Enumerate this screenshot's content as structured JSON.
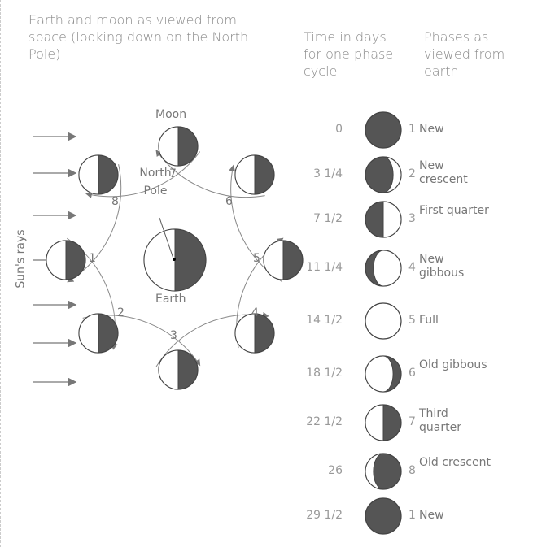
{
  "header": {
    "left": "Earth and moon as viewed from space (looking down on the North Pole)",
    "time": "Time in days for one phase cycle",
    "phases": "Phases as viewed from earth"
  },
  "labels": {
    "moon": "Moon",
    "north_pole": "North Pole",
    "earth": "Earth",
    "sun_rays": "Sun's rays"
  },
  "orbit_numbers": [
    "1",
    "2",
    "3",
    "4",
    "5",
    "6",
    "7",
    "8"
  ],
  "phases": [
    {
      "time": "0",
      "number": "1",
      "name": "New"
    },
    {
      "time": "3 1/4",
      "number": "2",
      "name": "New crescent"
    },
    {
      "time": "7 1/2",
      "number": "3",
      "name": "First quarter"
    },
    {
      "time": "11 1/4",
      "number": "4",
      "name": "New gibbous"
    },
    {
      "time": "14 1/2",
      "number": "5",
      "name": "Full"
    },
    {
      "time": "18 1/2",
      "number": "6",
      "name": "Old gibbous"
    },
    {
      "time": "22 1/2",
      "number": "7",
      "name": "Third quarter"
    },
    {
      "time": "26",
      "number": "8",
      "name": "Old crescent"
    },
    {
      "time": "29 1/2",
      "number": "1",
      "name": "New"
    }
  ]
}
